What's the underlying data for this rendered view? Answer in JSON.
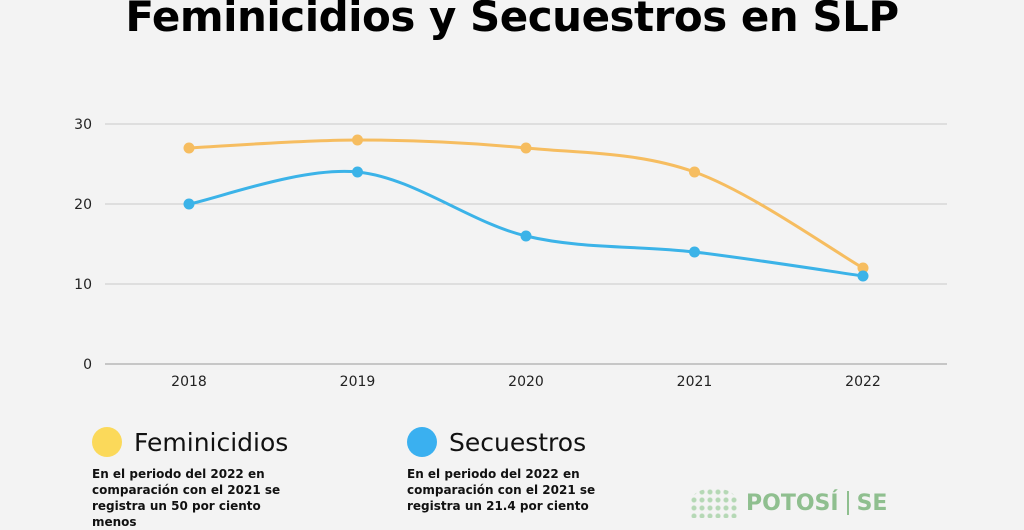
{
  "title": "Feminicidios y Secuestros en SLP",
  "chart_data": {
    "type": "line",
    "categories": [
      "2018",
      "2019",
      "2020",
      "2021",
      "2022"
    ],
    "series": [
      {
        "name": "Feminicidios",
        "color": "#f6bd60",
        "values": [
          27,
          28,
          27,
          24,
          12
        ]
      },
      {
        "name": "Secuestros",
        "color": "#3bb3e8",
        "values": [
          20,
          24,
          16,
          14,
          11
        ]
      }
    ],
    "ylim": [
      0,
      30
    ],
    "yticks": [
      0,
      10,
      20,
      30
    ],
    "grid": true,
    "smooth": true
  },
  "legend": {
    "feminicidios": {
      "label": "Feminicidios",
      "color": "#fbd95a",
      "note": "En el periodo del 2022 en comparación con el 2021 se registra un 50  por ciento menos"
    },
    "secuestros": {
      "label": "Secuestros",
      "color": "#3ab0f0",
      "note": "En el periodo del 2022 en comparación con el 2021 se registra un 21.4 por ciento"
    }
  },
  "logo": {
    "text_left": "POTOSÍ",
    "text_right": "SE"
  }
}
